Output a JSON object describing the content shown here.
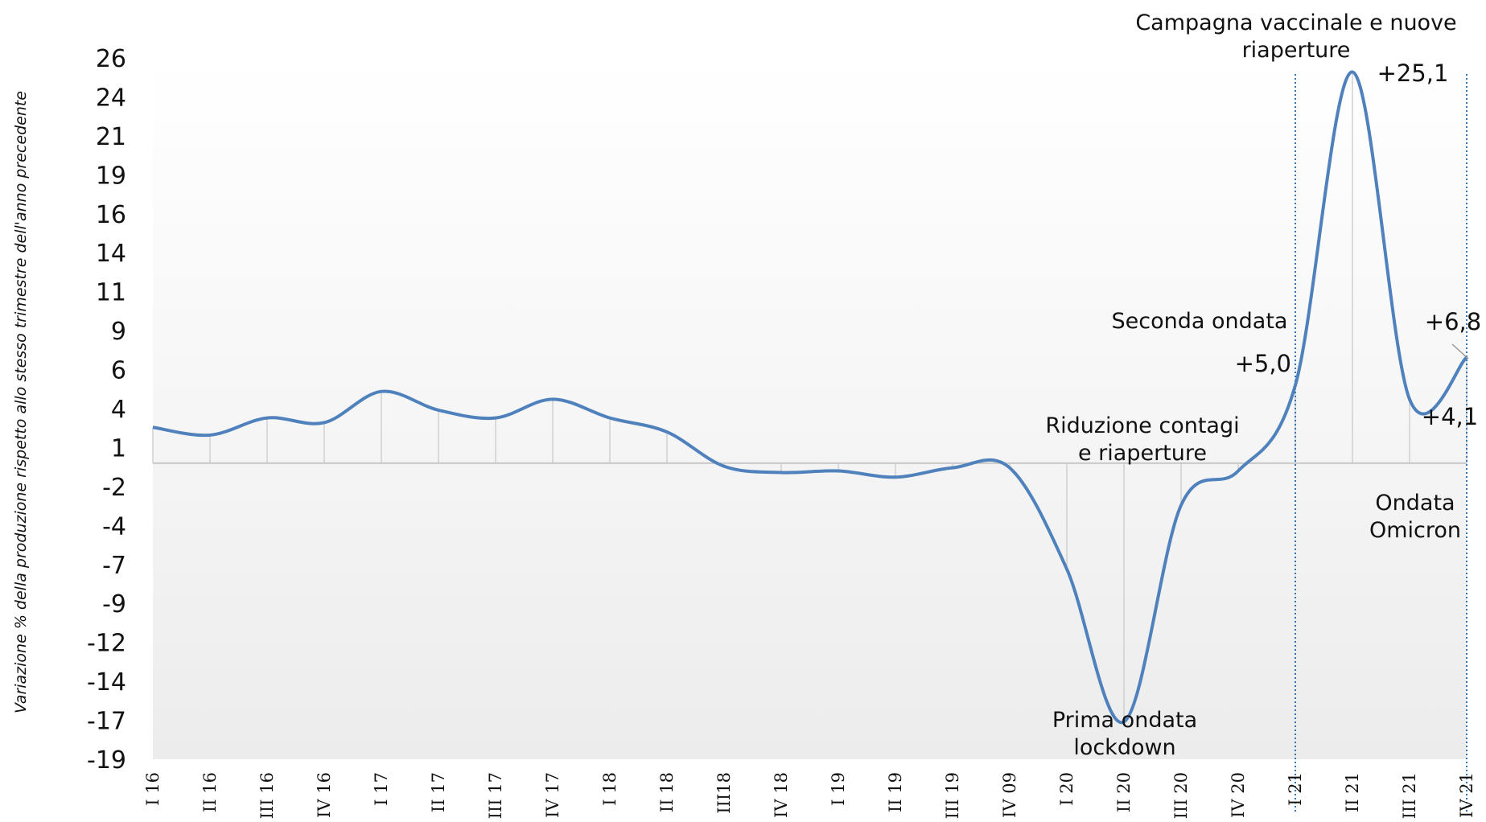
{
  "chart_data": {
    "type": "line",
    "ylabel": "Variazione % della produzione rispetto allo stesso trimestre dell'anno precedente",
    "xlabel": "",
    "categories": [
      "I 16",
      "II 16",
      "III 16",
      "IV 16",
      "I 17",
      "II 17",
      "III 17",
      "IV 17",
      "I 18",
      "II 18",
      "III18",
      "IV 18",
      "I 19",
      "II 19",
      "III 19",
      "IV 09",
      "I 20",
      "II 20",
      "III 20",
      "IV 20",
      "I 21",
      "II 21",
      "III 21",
      "IV 21"
    ],
    "y_tick_labels": [
      "26",
      "24",
      "21",
      "19",
      "16",
      "14",
      "11",
      "9",
      "6",
      "4",
      "1",
      "-2",
      "-4",
      "-7",
      "-9",
      "-12",
      "-14",
      "-17",
      "-19"
    ],
    "ylim": [
      -19,
      26
    ],
    "grid": true,
    "series": [
      {
        "name": "",
        "color": "#4f81bd",
        "values": [
          2.3,
          1.8,
          2.9,
          2.6,
          4.6,
          3.4,
          2.9,
          4.1,
          2.9,
          2.0,
          -0.2,
          -0.6,
          -0.5,
          -0.9,
          -0.3,
          -0.3,
          -6.8,
          -16.6,
          -2.7,
          -0.5,
          5.0,
          25.1,
          4.1,
          6.8
        ]
      }
    ],
    "data_labels": [
      {
        "index": 20,
        "text": "+5,0"
      },
      {
        "index": 21,
        "text": "+25,1"
      },
      {
        "index": 22,
        "text": "+4,1"
      },
      {
        "index": 23,
        "text": "+6,8"
      }
    ],
    "annotations": [
      {
        "lines": [
          "Campagna vaccinale e nuove",
          "riaperture"
        ]
      },
      {
        "lines": [
          "Seconda ondata"
        ]
      },
      {
        "lines": [
          "Riduzione contagi",
          "e riaperture"
        ]
      },
      {
        "lines": [
          "Prima ondata",
          "lockdown"
        ]
      },
      {
        "lines": [
          "Ondata",
          "Omicron"
        ]
      }
    ],
    "markers": [
      {
        "at": "I 21",
        "color": "#2e75b6"
      },
      {
        "at": "IV 21",
        "color": "#2e75b6"
      }
    ]
  }
}
